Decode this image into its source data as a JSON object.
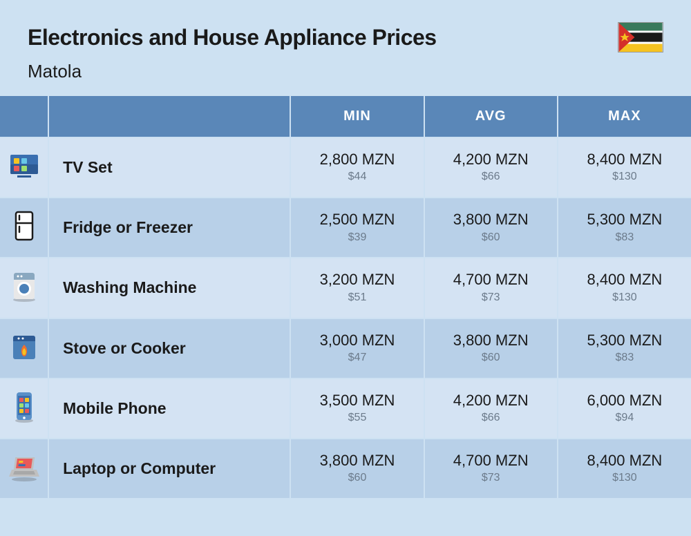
{
  "header": {
    "title": "Electronics and House Appliance Prices",
    "subtitle": "Matola"
  },
  "flag": {
    "stripes": [
      "#3a7a5c",
      "#ffffff",
      "#1a1a1a",
      "#ffffff",
      "#f5c321"
    ],
    "triangle": "#d4302a",
    "star": "#f5c321"
  },
  "table": {
    "columns": [
      "",
      "",
      "MIN",
      "AVG",
      "MAX"
    ],
    "col_widths": {
      "icon": 70,
      "name": 350,
      "val": 193
    },
    "header_bg": "#5a87b8",
    "header_color": "#ffffff",
    "row_odd_bg": "#d4e3f3",
    "row_even_bg": "#b8d0e8",
    "page_bg": "#cde1f2",
    "mzn_color": "#1a1a1a",
    "usd_color": "#6b7a8a",
    "mzn_fontsize": 22,
    "usd_fontsize": 16,
    "name_fontsize": 23,
    "rows": [
      {
        "icon": "tv",
        "name": "TV Set",
        "min": {
          "mzn": "2,800 MZN",
          "usd": "$44"
        },
        "avg": {
          "mzn": "4,200 MZN",
          "usd": "$66"
        },
        "max": {
          "mzn": "8,400 MZN",
          "usd": "$130"
        }
      },
      {
        "icon": "fridge",
        "name": "Fridge or Freezer",
        "min": {
          "mzn": "2,500 MZN",
          "usd": "$39"
        },
        "avg": {
          "mzn": "3,800 MZN",
          "usd": "$60"
        },
        "max": {
          "mzn": "5,300 MZN",
          "usd": "$83"
        }
      },
      {
        "icon": "washer",
        "name": "Washing Machine",
        "min": {
          "mzn": "3,200 MZN",
          "usd": "$51"
        },
        "avg": {
          "mzn": "4,700 MZN",
          "usd": "$73"
        },
        "max": {
          "mzn": "8,400 MZN",
          "usd": "$130"
        }
      },
      {
        "icon": "stove",
        "name": "Stove or Cooker",
        "min": {
          "mzn": "3,000 MZN",
          "usd": "$47"
        },
        "avg": {
          "mzn": "3,800 MZN",
          "usd": "$60"
        },
        "max": {
          "mzn": "5,300 MZN",
          "usd": "$83"
        }
      },
      {
        "icon": "phone",
        "name": "Mobile Phone",
        "min": {
          "mzn": "3,500 MZN",
          "usd": "$55"
        },
        "avg": {
          "mzn": "4,200 MZN",
          "usd": "$66"
        },
        "max": {
          "mzn": "6,000 MZN",
          "usd": "$94"
        }
      },
      {
        "icon": "laptop",
        "name": "Laptop or Computer",
        "min": {
          "mzn": "3,800 MZN",
          "usd": "$60"
        },
        "avg": {
          "mzn": "4,700 MZN",
          "usd": "$73"
        },
        "max": {
          "mzn": "8,400 MZN",
          "usd": "$130"
        }
      }
    ]
  },
  "icons": {
    "tv": {
      "bg1": "#3a6fb0",
      "bg2": "#2d5a94",
      "dots": [
        "#f5c321",
        "#68c8e8",
        "#e85a5a",
        "#9fe070"
      ]
    },
    "fridge": {
      "stroke": "#1a1a1a",
      "fill": "#ffffff"
    },
    "washer": {
      "body": "#e8e8e8",
      "top": "#8aa8c0",
      "drum": "#4a80b8",
      "shadow": "#5a5a5a"
    },
    "stove": {
      "body": "#4a80b8",
      "top": "#2d5a94",
      "flame_o": "#f07030",
      "flame_i": "#f5c321"
    },
    "phone": {
      "body": "#5a90c8",
      "screen": "#3a6fb0",
      "tile1": "#e85a5a",
      "tile2": "#f5c321",
      "tile3": "#9fe070",
      "tile4": "#68c8e8",
      "shadow": "#5a5a5a"
    },
    "laptop": {
      "base": "#c0c0c0",
      "screen": "#e85a5a",
      "bar1": "#f5c321",
      "bar2": "#3a6fb0",
      "shadow": "#5a5a5a"
    }
  }
}
